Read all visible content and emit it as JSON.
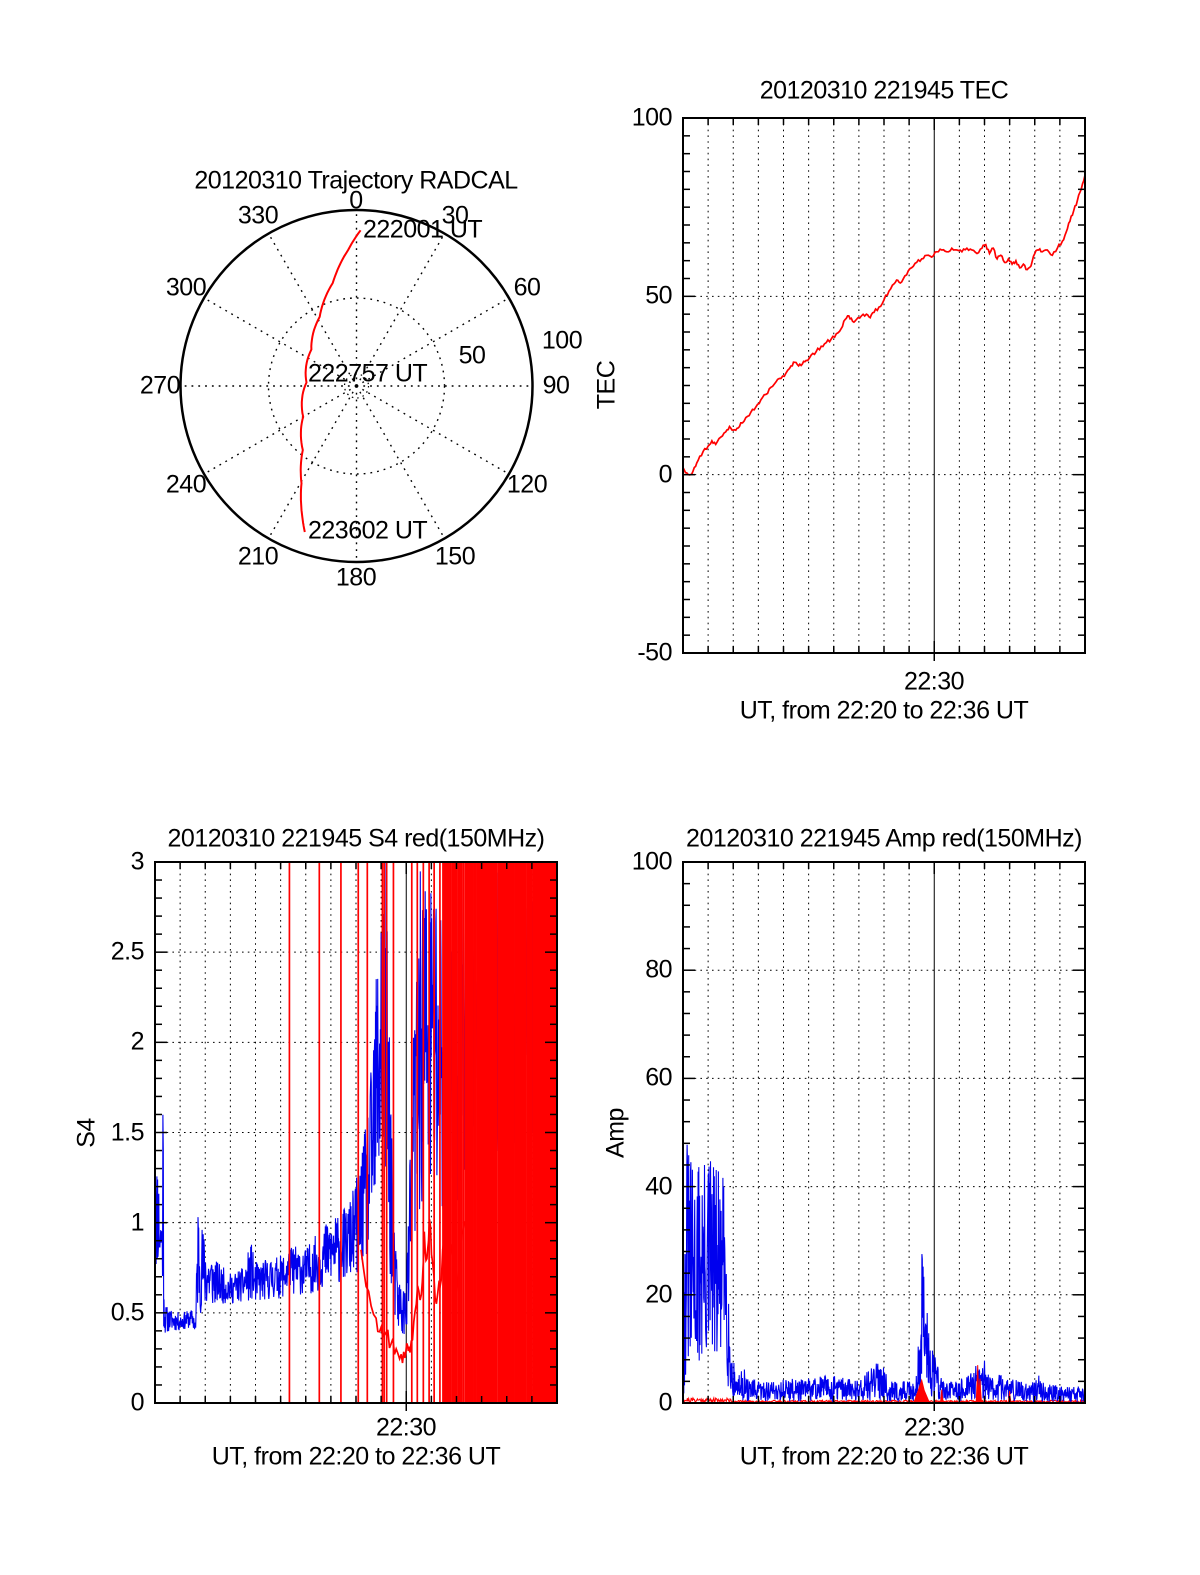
{
  "figure": {
    "background": "#ffffff",
    "text_color": "#000000",
    "accent_red": "#ff0000",
    "accent_blue": "#0000ee"
  },
  "chart_data": [
    {
      "id": "trajectory",
      "type": "polar-line",
      "title": "20120310 Trajectory RADCAL",
      "azimuth_ticks_deg": [
        0,
        30,
        60,
        90,
        120,
        150,
        180,
        210,
        240,
        270,
        300,
        330
      ],
      "radial_ticks": [
        50,
        100
      ],
      "radial_max": 100,
      "grid": "dotted-spokes-every-30deg, dotted-circle-at-50, solid-outer-circle",
      "series": [
        {
          "name": "trajectory",
          "color": "#ff0000",
          "azimuth_deg": [
            361.5,
            356.5,
            347,
            332,
            309,
            274,
            240,
            220,
            209.5,
            202.5,
            199.5
          ],
          "zenith": [
            88.5,
            77.5,
            60,
            44.5,
            33,
            28.5,
            35,
            47.5,
            63.5,
            80.5,
            88
          ]
        }
      ],
      "time_annotations": [
        {
          "label": "222001 UT",
          "azimuth_deg": 1.5,
          "zenith": 88.5
        },
        {
          "label": "222757 UT",
          "azimuth_deg": 274,
          "zenith": 28.5
        },
        {
          "label": "223602 UT",
          "azimuth_deg": 199.5,
          "zenith": 88
        }
      ]
    },
    {
      "id": "tec",
      "type": "line",
      "title": "20120310 221945 TEC",
      "xlabel": "UT, from 22:20 to 22:36 UT",
      "ylabel": "TEC",
      "x_start": "22:20",
      "x_end": "22:36",
      "x_major_label": "22:30",
      "x_major_minute": 10,
      "xlim": [
        0,
        16
      ],
      "ylim": [
        -50,
        100
      ],
      "yticks": [
        100,
        50,
        0,
        -50
      ],
      "ygrid": [
        50,
        0
      ],
      "minor_y_step": 5,
      "grid": "dotted-vertical-every-minute, solid-at-22:30",
      "series": [
        {
          "name": "TEC",
          "color": "#ff0000",
          "style": "line",
          "jitter": 0.5,
          "t": [
            0,
            0.15,
            0.3,
            0.45,
            0.6,
            0.8,
            1.0,
            1.15,
            1.3,
            1.5,
            1.7,
            1.85,
            2.0,
            2.15,
            2.3,
            2.5,
            2.7,
            2.9,
            3.1,
            3.3,
            3.5,
            3.7,
            3.9,
            4.1,
            4.3,
            4.45,
            4.6,
            4.75,
            4.9,
            5.1,
            5.3,
            5.5,
            5.7,
            5.9,
            6.1,
            6.3,
            6.45,
            6.6,
            6.75,
            6.9,
            7.1,
            7.3,
            7.45,
            7.6,
            7.8,
            8.0,
            8.2,
            8.4,
            8.55,
            8.7,
            8.9,
            9.1,
            9.3,
            9.5,
            9.7,
            9.9,
            10.1,
            10.3,
            10.5,
            10.7,
            10.9,
            11.1,
            11.3,
            11.5,
            11.7,
            11.9,
            12.05,
            12.2,
            12.35,
            12.5,
            12.65,
            12.8,
            12.95,
            13.1,
            13.25,
            13.4,
            13.55,
            13.7,
            13.85,
            14.0,
            14.15,
            14.3,
            14.5,
            14.7,
            14.9,
            15.1,
            15.25,
            15.4,
            15.55,
            15.7,
            15.85,
            16.0
          ],
          "y": [
            2,
            0.5,
            0,
            2,
            4,
            6.5,
            8,
            9.5,
            8.5,
            10.5,
            12,
            13.5,
            12.5,
            13,
            14.5,
            16,
            17.5,
            19,
            21,
            22.5,
            24.5,
            26,
            27,
            28.5,
            30.5,
            31.5,
            30.5,
            31,
            32,
            33.5,
            34.5,
            36,
            37,
            38,
            39.5,
            41,
            43.5,
            44.5,
            43,
            43.5,
            44.5,
            45,
            44,
            45.5,
            47,
            49,
            51.5,
            53.5,
            54.5,
            54,
            56,
            58,
            59.5,
            60.5,
            61.5,
            61,
            62.5,
            63,
            62.5,
            63.5,
            63,
            62.5,
            63.5,
            63,
            62,
            63.5,
            64.5,
            62,
            63.5,
            60.5,
            61.5,
            59.5,
            60.5,
            59,
            60,
            58,
            59,
            57.5,
            58.5,
            62,
            63,
            62.5,
            63,
            61.5,
            63.5,
            65.5,
            68,
            71,
            74,
            77,
            80,
            84
          ]
        }
      ]
    },
    {
      "id": "s4",
      "type": "line",
      "title": "20120310 221945 S4 red(150MHz)",
      "xlabel": "UT, from 22:20 to 22:36 UT",
      "ylabel": "S4",
      "x_start": "22:20",
      "x_end": "22:36",
      "x_major_label": "22:30",
      "x_major_minute": 10,
      "xlim": [
        0,
        16
      ],
      "ylim": [
        0,
        3
      ],
      "yticks": [
        3,
        2.5,
        2,
        1.5,
        1,
        0.5,
        0
      ],
      "ygrid": [
        2.5,
        2,
        1.5,
        1,
        0.5
      ],
      "minor_y_step": 0.1,
      "grid": "dotted-vertical-every-minute, solid-at-22:30",
      "series": [
        {
          "name": "S4-blue",
          "color": "#0000ee",
          "style": "noise",
          "seed": 11,
          "t": [
            0,
            0.1,
            0.2,
            0.28,
            0.31,
            0.38,
            0.6,
            1.0,
            1.5,
            1.62,
            1.7,
            1.8,
            1.95,
            2.2,
            2.5,
            3.0,
            3.5,
            3.85,
            3.95,
            4.5,
            5.0,
            5.5,
            6.0,
            6.5,
            6.9,
            7.3,
            7.7,
            8.1,
            8.4,
            8.6,
            8.8,
            8.95,
            9.15,
            9.35,
            9.5,
            9.7,
            9.95,
            10.1,
            10.25,
            10.4,
            10.55,
            11.0,
            11.4,
            11.8,
            12.3,
            13.0,
            13.7,
            14.5,
            15.2,
            16.0
          ],
          "lo": [
            0.72,
            0.75,
            0.72,
            0.85,
            0.4,
            0.38,
            0.4,
            0.4,
            0.42,
            0.36,
            0.5,
            0.5,
            0.5,
            0.52,
            0.55,
            0.55,
            0.56,
            0.56,
            0.55,
            0.57,
            0.58,
            0.6,
            0.6,
            0.62,
            0.65,
            0.66,
            0.68,
            0.72,
            0.78,
            0.85,
            0.95,
            1.05,
            1.1,
            0.7,
            0.45,
            0.38,
            0.36,
            0.45,
            0.7,
            0.9,
            1.05,
            1.0,
            0.85,
            1.05,
            1.2,
            1.3,
            1.2,
            1.3,
            1.35,
            1.4
          ],
          "hi": [
            1.05,
            1.45,
            1.1,
            1.0,
            2.15,
            0.55,
            0.52,
            0.5,
            0.52,
            0.48,
            1.2,
            1.05,
            0.95,
            0.85,
            0.78,
            0.72,
            0.75,
            0.9,
            0.78,
            0.8,
            0.82,
            0.88,
            0.86,
            0.95,
            1.02,
            1.05,
            1.1,
            1.3,
            1.55,
            1.85,
            2.4,
            3.0,
            3.0,
            2.2,
            1.0,
            0.7,
            0.65,
            1.1,
            2.0,
            2.6,
            3.0,
            3.0,
            3.0,
            3.0,
            3.0,
            3.0,
            3.0,
            3.0,
            3.0,
            3.0
          ]
        },
        {
          "name": "S4-red-curve",
          "color": "#ff0000",
          "style": "line",
          "jitter": 0.06,
          "t": [
            8.2,
            8.5,
            8.8,
            9.0,
            9.2,
            9.4,
            9.6,
            9.8,
            9.95,
            10.05,
            10.15,
            10.3,
            10.45,
            10.6,
            10.72,
            10.82,
            10.92,
            11.05,
            11.2,
            11.35,
            11.5,
            11.65,
            11.8,
            11.95,
            12.1,
            12.25,
            12.4
          ],
          "y": [
            0.85,
            0.62,
            0.47,
            0.42,
            0.38,
            0.33,
            0.3,
            0.27,
            0.25,
            0.32,
            0.28,
            0.45,
            0.65,
            0.6,
            0.95,
            0.8,
            1.02,
            0.78,
            0.55,
            0.65,
            0.9,
            0.6,
            0.88,
            0.55,
            0.78,
            0.95,
            1.0
          ]
        },
        {
          "name": "S4-red-spikes",
          "color": "#ff0000",
          "style": "vspikes",
          "y_span": [
            0,
            3
          ],
          "t": [
            5.35,
            6.54,
            7.4,
            8.09,
            8.45,
            9.05,
            9.12,
            9.22,
            9.49,
            10.22,
            10.44,
            10.68,
            10.91,
            11.11,
            11.34
          ]
        },
        {
          "name": "S4-red-dense",
          "color": "#ff0000",
          "style": "bands",
          "y_span": [
            0,
            3
          ],
          "seed": 5,
          "bands": [
            [
              11.45,
              12.3,
              22
            ],
            [
              12.32,
              13.62,
              34
            ],
            [
              13.66,
              16.0,
              62
            ]
          ]
        }
      ]
    },
    {
      "id": "amp",
      "type": "line",
      "title": "20120310 221945 Amp red(150MHz)",
      "xlabel": "UT, from 22:20 to 22:36 UT",
      "ylabel": "Amp",
      "x_start": "22:20",
      "x_end": "22:36",
      "x_major_label": "22:30",
      "x_major_minute": 10,
      "xlim": [
        0,
        16
      ],
      "ylim": [
        0,
        100
      ],
      "yticks": [
        100,
        80,
        60,
        40,
        20,
        0
      ],
      "ygrid": [
        80,
        60,
        40,
        20
      ],
      "minor_y_step": 4,
      "grid": "dotted-vertical-every-minute, solid-at-22:30",
      "series": [
        {
          "name": "Amp-red-baseline",
          "color": "#ff0000",
          "style": "noise",
          "seed": 21,
          "dt": 0.025,
          "t": [
            0,
            1.9,
            2.0,
            16
          ],
          "lo": [
            0.1,
            0.1,
            0.1,
            0.1
          ],
          "hi": [
            1.0,
            0.9,
            0.5,
            0.5
          ]
        },
        {
          "name": "Amp-blue",
          "color": "#0000ee",
          "style": "noise",
          "seed": 31,
          "t": [
            0,
            0.06,
            0.14,
            0.3,
            0.5,
            0.7,
            0.9,
            1.1,
            1.3,
            1.55,
            1.75,
            1.85,
            1.95,
            2.1,
            2.3,
            2.4,
            2.5,
            3,
            4,
            5,
            5.7,
            5.8,
            6,
            7,
            8.05,
            8.12,
            8.2,
            9,
            9.3,
            9.42,
            9.52,
            9.62,
            9.75,
            9.9,
            10.05,
            10.2,
            10.45,
            10.8,
            11.3,
            11.6,
            11.8,
            11.95,
            12.1,
            12.5,
            12.62,
            12.75,
            13.0,
            13.1,
            13.5,
            14.0,
            14.2,
            14.3,
            15.0,
            15.5,
            16.0
          ],
          "lo": [
            0,
            2,
            5,
            5,
            5,
            5,
            5,
            5,
            5,
            5,
            4,
            2,
            1,
            0.5,
            0.4,
            0.4,
            0.3,
            0.3,
            0.3,
            0.3,
            0.4,
            0.3,
            0.3,
            0.3,
            0.5,
            0.3,
            0.3,
            0.3,
            0.5,
            1.5,
            3,
            2.5,
            1.5,
            1,
            0.8,
            0.5,
            0.3,
            0.3,
            0.4,
            0.5,
            0.5,
            0.5,
            0.4,
            0.3,
            0.4,
            0.3,
            0.3,
            0.3,
            0.3,
            0.25,
            0.3,
            0.25,
            0.25,
            0.2,
            0.2
          ],
          "hi": [
            9,
            30,
            50,
            45,
            44,
            47,
            44,
            48,
            44,
            43,
            40,
            14,
            9,
            6,
            5,
            8.5,
            4.5,
            4,
            4.5,
            4.5,
            5.5,
            4.5,
            5,
            4.5,
            9,
            5,
            4,
            4,
            5.5,
            16,
            30,
            25,
            17,
            12,
            10,
            5.5,
            4,
            4,
            5,
            6.5,
            8,
            9.5,
            5.5,
            4,
            6,
            4.5,
            5,
            4.5,
            4,
            3.8,
            5.5,
            3.8,
            3.5,
            3.2,
            3
          ]
        },
        {
          "name": "Amp-red-peaks",
          "color": "#ff0000",
          "style": "peaks",
          "peaks": [
            [
              9.5,
              4.2,
              0.3
            ],
            [
              10.3,
              2.5,
              0.05
            ],
            [
              11.73,
              7,
              0.06
            ],
            [
              11.82,
              4.5,
              0.06
            ],
            [
              13.0,
              2.2,
              0.05
            ]
          ]
        }
      ]
    }
  ]
}
